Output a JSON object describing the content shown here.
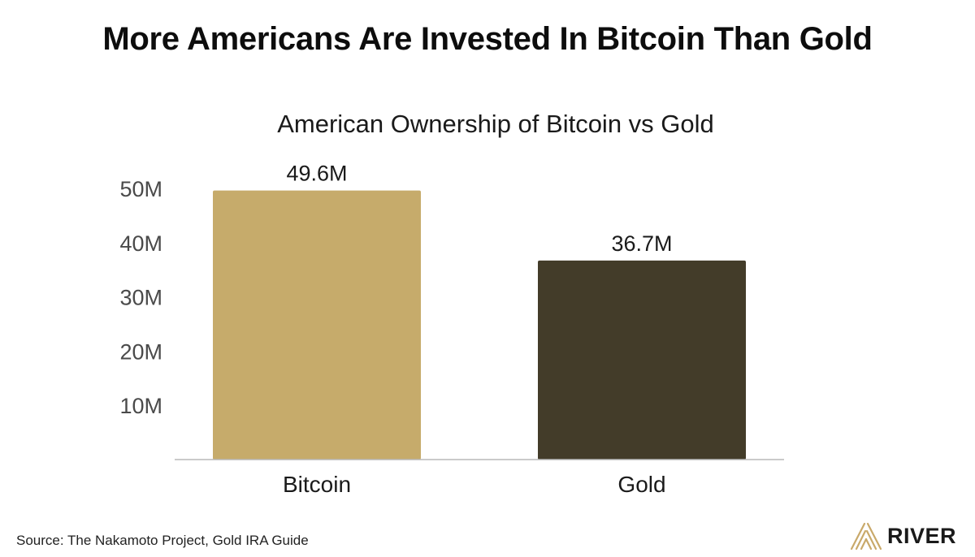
{
  "headline": "More Americans Are Invested In Bitcoin Than Gold",
  "source": "Source: The Nakamoto Project, Gold IRA Guide",
  "brand": {
    "name": "RIVER",
    "logo_icon": "river-chevron-logo",
    "logo_color": "#c9a96a"
  },
  "chart_data": {
    "type": "bar",
    "title": "American Ownership of Bitcoin vs Gold",
    "xlabel": "",
    "ylabel": "",
    "categories": [
      "Bitcoin",
      "Gold"
    ],
    "values": [
      49.6,
      36.7
    ],
    "value_labels": [
      "49.6M",
      "36.7M"
    ],
    "colors": [
      "#c6ab6b",
      "#433c29"
    ],
    "y_ticks": [
      10,
      20,
      30,
      40,
      50
    ],
    "y_tick_labels": [
      "10M",
      "20M",
      "30M",
      "40M",
      "50M"
    ],
    "ylim": [
      0,
      50
    ],
    "grid": false,
    "legend": "none"
  }
}
